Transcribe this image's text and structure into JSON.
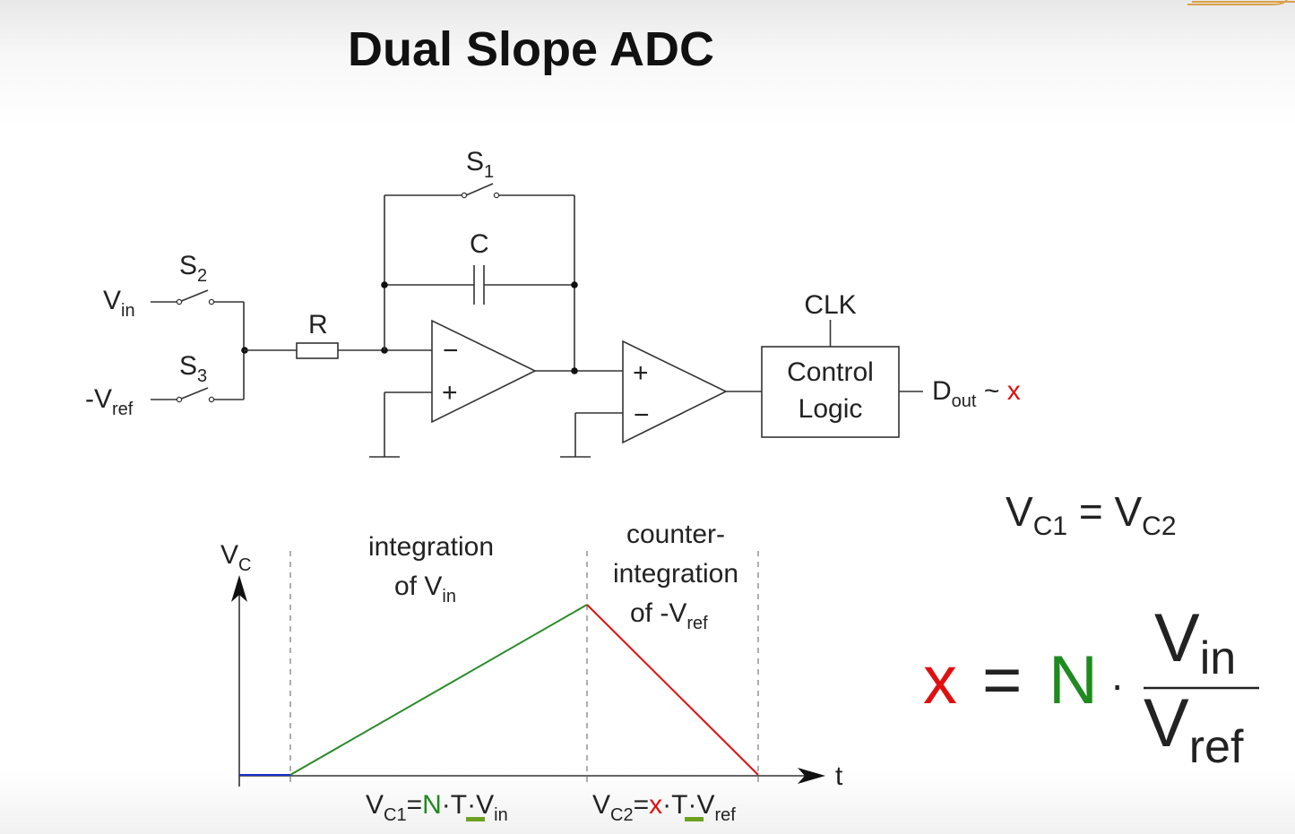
{
  "title": "Dual Slope ADC",
  "circuit": {
    "s1": {
      "main": "S",
      "sub": "1"
    },
    "s2": {
      "main": "S",
      "sub": "2"
    },
    "s3": {
      "main": "S",
      "sub": "3"
    },
    "c": "C",
    "r": "R",
    "vin": {
      "main": "V",
      "sub": "in"
    },
    "vref": {
      "main": "-V",
      "sub": "ref"
    },
    "op_minus": "−",
    "op_plus": "+",
    "clk": "CLK",
    "control_line1": "Control",
    "control_line2": "Logic",
    "dout": {
      "main": "D",
      "sub": "out",
      "tilde": " ~ ",
      "x": "x"
    }
  },
  "graph": {
    "y_axis": {
      "main": "V",
      "sub": "C"
    },
    "x_axis": "t",
    "phase1_line1": "integration",
    "phase1_line2": {
      "main": "of V",
      "sub": "in"
    },
    "phase2_line1": "counter-",
    "phase2_line2": "integration",
    "phase2_line3": {
      "main": "of -V",
      "sub": "ref"
    },
    "vc1": {
      "v": "V",
      "sub": "C1",
      "eq": "=",
      "n": "N",
      "dot1": "·",
      "t": "T",
      "dot2": "·",
      "v2": "V",
      "sub2": "in"
    },
    "vc2": {
      "v": "V",
      "sub": "C2",
      "eq": "=",
      "x": "x",
      "dot1": "·",
      "t": "T",
      "dot2": "·",
      "v2": "V",
      "sub2": "ref"
    },
    "colors": {
      "idle": "#1a2fd0",
      "rise": "#2a8a2a",
      "fall": "#e01010",
      "underline": "#6ea020"
    }
  },
  "equations": {
    "balance": {
      "v1": "V",
      "sub1": "C1",
      "eq": " = ",
      "v2": "V",
      "sub2": "C2"
    },
    "result": {
      "x": "x",
      "eq": "=",
      "n": "N",
      "dot": "·",
      "num_main": "V",
      "num_sub": "in",
      "den_main": "V",
      "den_sub": "ref"
    }
  }
}
